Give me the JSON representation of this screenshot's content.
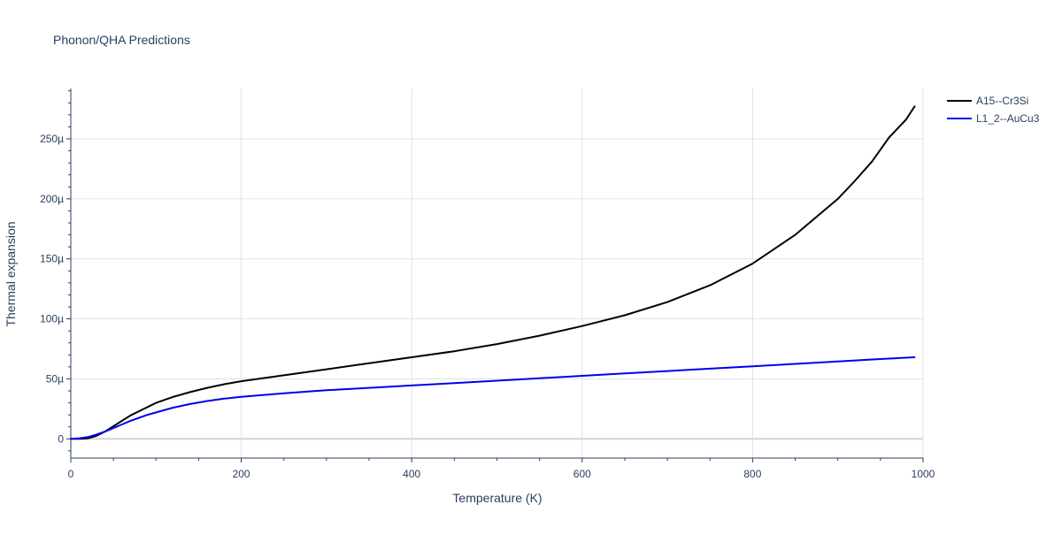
{
  "chart_data": {
    "type": "line",
    "title": "Phonon/QHA Predictions",
    "xlabel": "Temperature (K)",
    "ylabel": "Thermal expansion",
    "xlim": [
      0,
      1000
    ],
    "ylim": [
      -16,
      292
    ],
    "x_ticks": [
      0,
      200,
      400,
      600,
      800,
      1000
    ],
    "y_ticks": [
      0,
      50,
      100,
      150,
      200,
      250
    ],
    "x_tick_labels": [
      "0",
      "200",
      "400",
      "600",
      "800",
      "1000"
    ],
    "y_tick_labels": [
      "0",
      "50µ",
      "100µ",
      "150µ",
      "200µ",
      "250µ"
    ],
    "y_unit": "µ (×1e-6)",
    "grid": true,
    "legend_position": "top-right",
    "series": [
      {
        "name": "A15--Cr3Si",
        "color": "#000000",
        "x": [
          0,
          10,
          20,
          30,
          40,
          50,
          60,
          70,
          80,
          90,
          100,
          120,
          140,
          160,
          180,
          200,
          250,
          300,
          350,
          400,
          450,
          500,
          550,
          600,
          650,
          700,
          750,
          800,
          850,
          900,
          920,
          940,
          960,
          980,
          990
        ],
        "y": [
          0,
          0,
          0.5,
          2.5,
          6,
          10.5,
          15,
          19.5,
          23,
          26.5,
          30,
          35,
          39,
          42.5,
          45.5,
          48,
          53,
          58,
          63,
          68,
          73,
          79,
          86,
          94,
          103,
          114,
          128,
          146,
          170,
          200,
          215,
          231,
          251,
          266,
          277
        ]
      },
      {
        "name": "L1_2--AuCu3",
        "color": "#0000ee",
        "x": [
          0,
          10,
          20,
          30,
          40,
          50,
          60,
          70,
          80,
          90,
          100,
          120,
          140,
          160,
          180,
          200,
          250,
          300,
          350,
          400,
          450,
          500,
          550,
          600,
          650,
          700,
          750,
          800,
          850,
          900,
          950,
          990
        ],
        "y": [
          0,
          0.5,
          1.5,
          3.5,
          6,
          9,
          12,
          15,
          17.5,
          20,
          22,
          26,
          29,
          31.5,
          33.5,
          35,
          38,
          40.5,
          42.5,
          44.5,
          46.5,
          48.5,
          50.5,
          52.5,
          54.5,
          56.5,
          58.5,
          60.5,
          62.5,
          64.5,
          66.5,
          68
        ]
      }
    ]
  }
}
